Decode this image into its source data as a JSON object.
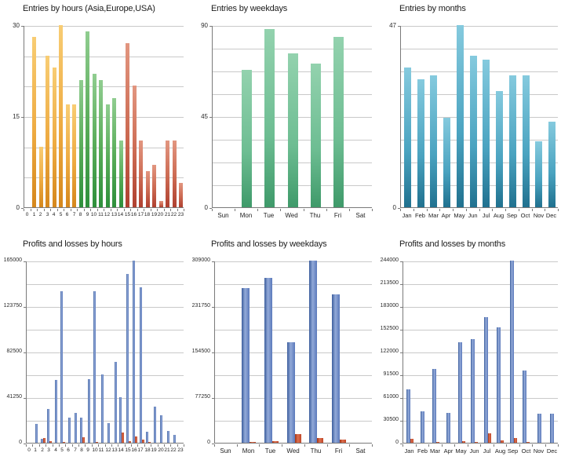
{
  "page": {
    "background": "#ffffff"
  },
  "colors": {
    "asia_amber": "#eda93f",
    "europe_green": "#4aa44a",
    "usa_red": "#c25443",
    "weekday_green": "#6fbd93",
    "month_teal": "#4fa7c4",
    "profit_blue": "#5b79bb",
    "loss_red": "#c23f1e",
    "gridline": "#c9c9c9",
    "axis": "#7a7a7a"
  },
  "chart_data": [
    {
      "type": "bar",
      "title": "Entries by hours (Asia,Europe,USA)",
      "categories": [
        "0",
        "1",
        "2",
        "3",
        "4",
        "5",
        "6",
        "7",
        "8",
        "9",
        "10",
        "11",
        "12",
        "13",
        "14",
        "15",
        "16",
        "17",
        "18",
        "19",
        "20",
        "21",
        "22",
        "23"
      ],
      "values": [
        0,
        28,
        10,
        25,
        23,
        30,
        17,
        17,
        21,
        29,
        22,
        21,
        17,
        18,
        11,
        27,
        20,
        11,
        6,
        7,
        1,
        11,
        11,
        4
      ],
      "bar_colors": [
        "amber",
        "amber",
        "amber",
        "amber",
        "amber",
        "amber",
        "amber",
        "amber",
        "green",
        "green",
        "green",
        "green",
        "green",
        "green",
        "green",
        "red",
        "red",
        "red",
        "red",
        "red",
        "red",
        "red",
        "red",
        "red"
      ],
      "xlabel": "",
      "ylabel": "",
      "ylim": [
        0,
        30
      ],
      "yticks": [
        30,
        15,
        0
      ],
      "grid_divisions": 6,
      "grid": true,
      "legend": "none"
    },
    {
      "type": "bar",
      "title": "Entries by weekdays",
      "categories": [
        "Sun",
        "Mon",
        "Tue",
        "Wed",
        "Thu",
        "Fri",
        "Sat"
      ],
      "values": [
        0,
        68,
        88,
        76,
        71,
        84,
        0
      ],
      "bar_colors": [
        "mint",
        "mint",
        "mint",
        "mint",
        "mint",
        "mint",
        "mint"
      ],
      "xlabel": "",
      "ylabel": "",
      "ylim": [
        0,
        90
      ],
      "yticks": [
        90,
        45,
        0
      ],
      "grid_divisions": 8,
      "grid": true,
      "legend": "none"
    },
    {
      "type": "bar",
      "title": "Entries by months",
      "categories": [
        "Jan",
        "Feb",
        "Mar",
        "Apr",
        "May",
        "Jun",
        "Jul",
        "Aug",
        "Sep",
        "Oct",
        "Nov",
        "Dec"
      ],
      "values": [
        36,
        33,
        34,
        23,
        47,
        39,
        38,
        30,
        34,
        34,
        17,
        22
      ],
      "bar_colors": [
        "teal",
        "teal",
        "teal",
        "teal",
        "teal",
        "teal",
        "teal",
        "teal",
        "teal",
        "teal",
        "teal",
        "teal"
      ],
      "xlabel": "",
      "ylabel": "",
      "ylim": [
        0,
        47
      ],
      "yticks": [
        47,
        0
      ],
      "grid_divisions": 8,
      "grid": true,
      "legend": "none"
    },
    {
      "type": "bar",
      "title": "Profits and losses by hours",
      "categories": [
        "0",
        "1",
        "2",
        "3",
        "4",
        "5",
        "6",
        "7",
        "8",
        "9",
        "10",
        "11",
        "12",
        "13",
        "14",
        "15",
        "16",
        "17",
        "18",
        "19",
        "20",
        "21",
        "22",
        "23"
      ],
      "series": [
        {
          "name": "profits",
          "color": "blue",
          "values": [
            0,
            17000,
            3500,
            30500,
            57000,
            137000,
            22500,
            27000,
            22500,
            57500,
            137000,
            62000,
            18000,
            73000,
            41000,
            153000,
            165000,
            141000,
            10000,
            33000,
            25000,
            11000,
            7000,
            0
          ]
        },
        {
          "name": "losses",
          "color": "loss",
          "values": [
            0,
            0,
            4000,
            1200,
            0,
            800,
            0,
            0,
            5000,
            0,
            600,
            0,
            0,
            0,
            9500,
            1500,
            6000,
            2800,
            700,
            0,
            0,
            0,
            0,
            0
          ]
        }
      ],
      "xlabel": "",
      "ylabel": "",
      "ylim": [
        0,
        165000
      ],
      "yticks": [
        165000,
        123750,
        82500,
        41250,
        0
      ],
      "grid_divisions": 8,
      "grid": true,
      "legend": "none"
    },
    {
      "type": "bar",
      "title": "Profits and losses by weekdays",
      "categories": [
        "Sun",
        "Mon",
        "Tue",
        "Wed",
        "Thu",
        "Fri",
        "Sat"
      ],
      "series": [
        {
          "name": "profits",
          "color": "blue",
          "values": [
            0,
            263000,
            280000,
            171000,
            309000,
            252000,
            0
          ]
        },
        {
          "name": "losses",
          "color": "loss",
          "values": [
            0,
            800,
            2500,
            14000,
            8000,
            5500,
            0
          ]
        }
      ],
      "xlabel": "",
      "ylabel": "",
      "ylim": [
        0,
        309000
      ],
      "yticks": [
        309000,
        231750,
        154500,
        77250,
        0
      ],
      "grid_divisions": 8,
      "grid": true,
      "legend": "none"
    },
    {
      "type": "bar",
      "title": "Profits and losses by months",
      "categories": [
        "Jan",
        "Feb",
        "Mar",
        "Apr",
        "May",
        "Jun",
        "Jul",
        "Aug",
        "Sep",
        "Oct",
        "Nov",
        "Dec"
      ],
      "series": [
        {
          "name": "profits",
          "color": "blue",
          "values": [
            71000,
            42000,
            99000,
            40000,
            135000,
            139000,
            168000,
            155000,
            244000,
            97000,
            39000,
            39000
          ]
        },
        {
          "name": "losses",
          "color": "loss",
          "values": [
            5000,
            0,
            500,
            0,
            2000,
            1000,
            13000,
            3500,
            6500,
            500,
            0,
            0
          ]
        }
      ],
      "xlabel": "",
      "ylabel": "",
      "ylim": [
        0,
        244000
      ],
      "yticks": [
        244000,
        213500,
        183000,
        152500,
        122000,
        91500,
        61000,
        30500,
        0
      ],
      "grid_divisions": 8,
      "grid": true,
      "legend": "none"
    }
  ]
}
